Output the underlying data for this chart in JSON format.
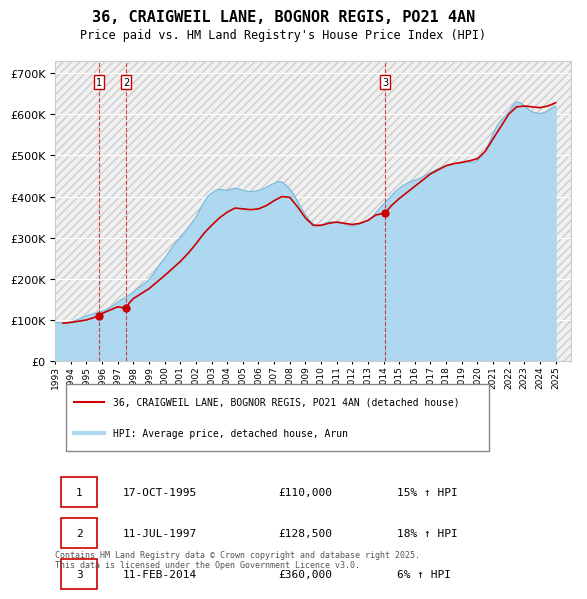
{
  "title": "36, CRAIGWEIL LANE, BOGNOR REGIS, PO21 4AN",
  "subtitle": "Price paid vs. HM Land Registry's House Price Index (HPI)",
  "hpi_color": "#add8f0",
  "price_color": "#cc0000",
  "background_color": "#ffffff",
  "plot_bg_color": "#f0f0f0",
  "ylim": [
    0,
    730000
  ],
  "yticks": [
    0,
    100000,
    200000,
    300000,
    400000,
    500000,
    600000,
    700000
  ],
  "xlim_start": 1993.0,
  "xlim_end": 2026.0,
  "transactions": [
    {
      "label": "1",
      "date": "17-OCT-1995",
      "price": 110000,
      "pct": "15%",
      "dir": "↑",
      "x": 1995.79
    },
    {
      "label": "2",
      "date": "11-JUL-1997",
      "price": 128500,
      "pct": "18%",
      "dir": "↑",
      "x": 1997.53
    },
    {
      "label": "3",
      "date": "11-FEB-2014",
      "price": 360000,
      "pct": "6%",
      "dir": "↑",
      "x": 2014.11
    }
  ],
  "legend_line1": "36, CRAIGWEIL LANE, BOGNOR REGIS, PO21 4AN (detached house)",
  "legend_line2": "HPI: Average price, detached house, Arun",
  "footer": "Contains HM Land Registry data © Crown copyright and database right 2025.\nThis data is licensed under the Open Government Licence v3.0.",
  "hpi_data_x": [
    1993.0,
    1993.25,
    1993.5,
    1993.75,
    1994.0,
    1994.25,
    1994.5,
    1994.75,
    1995.0,
    1995.25,
    1995.5,
    1995.75,
    1996.0,
    1996.25,
    1996.5,
    1996.75,
    1997.0,
    1997.25,
    1997.5,
    1997.75,
    1998.0,
    1998.25,
    1998.5,
    1998.75,
    1999.0,
    1999.25,
    1999.5,
    1999.75,
    2000.0,
    2000.25,
    2000.5,
    2000.75,
    2001.0,
    2001.25,
    2001.5,
    2001.75,
    2002.0,
    2002.25,
    2002.5,
    2002.75,
    2003.0,
    2003.25,
    2003.5,
    2003.75,
    2004.0,
    2004.25,
    2004.5,
    2004.75,
    2005.0,
    2005.25,
    2005.5,
    2005.75,
    2006.0,
    2006.25,
    2006.5,
    2006.75,
    2007.0,
    2007.25,
    2007.5,
    2007.75,
    2008.0,
    2008.25,
    2008.5,
    2008.75,
    2009.0,
    2009.25,
    2009.5,
    2009.75,
    2010.0,
    2010.25,
    2010.5,
    2010.75,
    2011.0,
    2011.25,
    2011.5,
    2011.75,
    2012.0,
    2012.25,
    2012.5,
    2012.75,
    2013.0,
    2013.25,
    2013.5,
    2013.75,
    2014.0,
    2014.25,
    2014.5,
    2014.75,
    2015.0,
    2015.25,
    2015.5,
    2015.75,
    2016.0,
    2016.25,
    2016.5,
    2016.75,
    2017.0,
    2017.25,
    2017.5,
    2017.75,
    2018.0,
    2018.25,
    2018.5,
    2018.75,
    2019.0,
    2019.25,
    2019.5,
    2019.75,
    2020.0,
    2020.25,
    2020.5,
    2020.75,
    2021.0,
    2021.25,
    2021.5,
    2021.75,
    2022.0,
    2022.25,
    2022.5,
    2022.75,
    2023.0,
    2023.25,
    2023.5,
    2023.75,
    2024.0,
    2024.25,
    2024.5,
    2024.75,
    2025.0
  ],
  "hpi_data_y": [
    94000,
    93000,
    92000,
    93000,
    95000,
    98000,
    102000,
    107000,
    110000,
    113000,
    116000,
    118000,
    121000,
    125000,
    130000,
    136000,
    143000,
    150000,
    155000,
    161000,
    168000,
    176000,
    183000,
    190000,
    198000,
    210000,
    225000,
    238000,
    250000,
    264000,
    278000,
    290000,
    300000,
    312000,
    325000,
    337000,
    350000,
    368000,
    385000,
    400000,
    408000,
    415000,
    418000,
    416000,
    415000,
    418000,
    420000,
    418000,
    415000,
    413000,
    412000,
    413000,
    415000,
    418000,
    422000,
    428000,
    432000,
    436000,
    435000,
    428000,
    418000,
    405000,
    388000,
    370000,
    355000,
    342000,
    333000,
    328000,
    330000,
    335000,
    338000,
    338000,
    336000,
    335000,
    333000,
    330000,
    328000,
    330000,
    333000,
    338000,
    343000,
    350000,
    360000,
    372000,
    382000,
    392000,
    402000,
    412000,
    420000,
    427000,
    432000,
    437000,
    440000,
    443000,
    448000,
    453000,
    458000,
    463000,
    468000,
    472000,
    475000,
    478000,
    480000,
    482000,
    483000,
    484000,
    484000,
    483000,
    488000,
    497000,
    510000,
    530000,
    552000,
    572000,
    585000,
    595000,
    605000,
    620000,
    630000,
    628000,
    620000,
    612000,
    606000,
    603000,
    602000,
    604000,
    608000,
    614000,
    620000
  ],
  "price_data_x": [
    1993.5,
    1994.0,
    1994.5,
    1995.0,
    1995.5,
    1995.79,
    1996.0,
    1996.5,
    1997.0,
    1997.53,
    1997.75,
    1998.0,
    1998.5,
    1999.0,
    1999.5,
    2000.0,
    2000.5,
    2001.0,
    2001.5,
    2002.0,
    2002.5,
    2003.0,
    2003.5,
    2004.0,
    2004.5,
    2005.0,
    2005.5,
    2006.0,
    2006.5,
    2007.0,
    2007.5,
    2008.0,
    2008.5,
    2009.0,
    2009.5,
    2010.0,
    2010.5,
    2011.0,
    2011.5,
    2012.0,
    2012.5,
    2013.0,
    2013.5,
    2014.11,
    2014.5,
    2015.0,
    2015.5,
    2016.0,
    2016.5,
    2017.0,
    2017.5,
    2018.0,
    2018.5,
    2019.0,
    2019.5,
    2020.0,
    2020.5,
    2021.0,
    2021.5,
    2022.0,
    2022.5,
    2023.0,
    2023.5,
    2024.0,
    2024.5,
    2025.0
  ],
  "price_data_y": [
    92000,
    94000,
    97000,
    100000,
    106000,
    110000,
    116000,
    124000,
    132000,
    128500,
    142000,
    152000,
    164000,
    176000,
    192000,
    208000,
    225000,
    242000,
    262000,
    285000,
    310000,
    330000,
    348000,
    362000,
    372000,
    370000,
    368000,
    370000,
    378000,
    390000,
    400000,
    398000,
    375000,
    348000,
    330000,
    330000,
    335000,
    338000,
    335000,
    332000,
    335000,
    342000,
    355000,
    360000,
    378000,
    395000,
    410000,
    425000,
    440000,
    455000,
    465000,
    475000,
    480000,
    483000,
    487000,
    492000,
    510000,
    540000,
    570000,
    600000,
    618000,
    620000,
    618000,
    616000,
    620000,
    628000
  ]
}
